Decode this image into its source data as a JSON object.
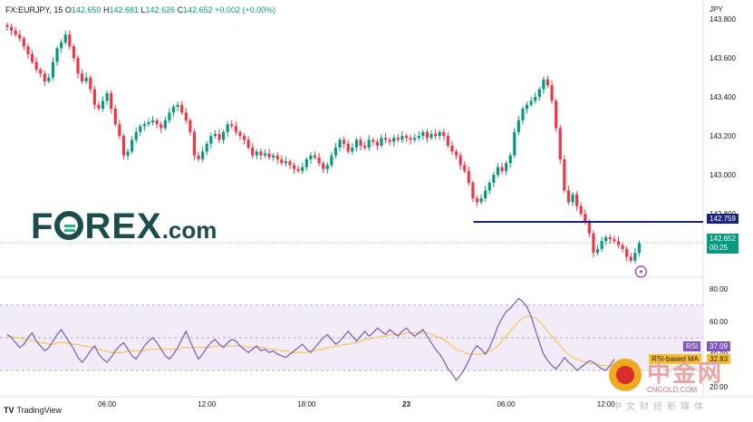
{
  "header": {
    "symbol_line": "FX:EURJPY, 15",
    "open_label": "O",
    "open": "142.650",
    "high_label": "H",
    "high": "142.681",
    "low_label": "L",
    "low": "142.626",
    "close_label": "C",
    "close": "142.652",
    "change": "+0.002 (+0.00%)"
  },
  "logo_text": {
    "part1": "F",
    "part2": "REX",
    "dotcom": ".com"
  },
  "tags": {
    "level": "142.759",
    "price": "142.652",
    "countdown": "00:25",
    "rsi_label": "RSI",
    "rsi_value": "37.09",
    "rsi_ma_label": "RSI-based MA",
    "rsi_ma_value": "32.83"
  },
  "brand": {
    "name": "TradingView"
  },
  "watermark": {
    "main": "中金网",
    "url": "CNGOLD.COM",
    "sub": "中文财经新媒体"
  },
  "colors": {
    "up": "#089981",
    "down": "#f23645",
    "level": "#1a237e",
    "rsi": "#7e57c2",
    "rsi_ma": "#fbc02d",
    "rsi_band": "#ede7f6"
  },
  "chart_data": {
    "type": "candlestick",
    "symbol": "FX:EURJPY",
    "interval": "15",
    "y_axis_unit": "JPY",
    "yticks": [
      143.8,
      143.6,
      143.4,
      143.2,
      143.0,
      142.8
    ],
    "ytick_labels": [
      "143.800",
      "143.600",
      "143.400",
      "143.200",
      "143.000",
      "142.800"
    ],
    "ylim": [
      142.48,
      143.87
    ],
    "horizontal_level": 142.759,
    "last_price": 142.652,
    "xtick_labels": [
      "06:00",
      "12:00",
      "18:00",
      "23",
      "06:00",
      "12:00"
    ],
    "xtick_candle_index": [
      24,
      48,
      72,
      96,
      120,
      144
    ],
    "closes": [
      143.76,
      143.74,
      143.72,
      143.7,
      143.66,
      143.62,
      143.58,
      143.54,
      143.52,
      143.48,
      143.5,
      143.58,
      143.65,
      143.68,
      143.72,
      143.66,
      143.6,
      143.52,
      143.48,
      143.5,
      143.44,
      143.36,
      143.34,
      143.38,
      143.42,
      143.34,
      143.26,
      143.2,
      143.1,
      143.12,
      143.18,
      143.22,
      143.25,
      143.26,
      143.27,
      143.28,
      143.26,
      143.24,
      143.28,
      143.32,
      143.35,
      143.36,
      143.32,
      143.28,
      143.22,
      143.1,
      143.08,
      143.12,
      143.16,
      143.2,
      143.21,
      143.18,
      143.22,
      143.26,
      143.25,
      143.22,
      143.2,
      143.18,
      143.14,
      143.1,
      143.12,
      143.1,
      143.11,
      143.09,
      143.1,
      143.08,
      143.06,
      143.07,
      143.05,
      143.03,
      143.02,
      143.04,
      143.08,
      143.1,
      143.09,
      143.06,
      143.03,
      143.05,
      143.1,
      143.14,
      143.18,
      143.16,
      143.12,
      143.14,
      143.18,
      143.15,
      143.14,
      143.18,
      143.17,
      143.15,
      143.19,
      143.18,
      143.17,
      143.19,
      143.18,
      143.2,
      143.19,
      143.18,
      143.19,
      143.2,
      143.22,
      143.19,
      143.21,
      143.2,
      143.22,
      143.2,
      143.15,
      143.12,
      143.1,
      143.05,
      143.02,
      142.96,
      142.88,
      142.86,
      142.88,
      142.92,
      142.96,
      143.0,
      143.04,
      143.02,
      143.06,
      143.1,
      143.22,
      143.28,
      143.34,
      143.36,
      143.38,
      143.4,
      143.44,
      143.49,
      143.46,
      143.38,
      143.24,
      143.08,
      142.92,
      142.86,
      142.9,
      142.84,
      142.8,
      142.76,
      142.7,
      142.6,
      142.62,
      142.66,
      142.68,
      142.67,
      142.66,
      142.64,
      142.62,
      142.58,
      142.56,
      142.6,
      142.65
    ],
    "rsi_axis_ticks": [
      80,
      60,
      40,
      20
    ],
    "rsi_axis_labels": [
      "80.00",
      "60.00",
      "40.00",
      "20.00"
    ],
    "rsi_band": [
      30,
      70
    ],
    "rsi_mid": 50,
    "rsi_ylim": [
      14,
      86
    ],
    "rsi": [
      52,
      50,
      47,
      44,
      46,
      50,
      53,
      48,
      45,
      42,
      44,
      48,
      52,
      55,
      51,
      47,
      43,
      38,
      35,
      38,
      42,
      45,
      40,
      37,
      35,
      38,
      42,
      45,
      47,
      43,
      39,
      37,
      41,
      45,
      48,
      50,
      47,
      43,
      39,
      37,
      40,
      44,
      49,
      54,
      48,
      42,
      37,
      40,
      44,
      47,
      49,
      46,
      44,
      47,
      49,
      48,
      45,
      43,
      41,
      43,
      45,
      42,
      43,
      41,
      42,
      40,
      39,
      38,
      40,
      42,
      44,
      46,
      43,
      41,
      44,
      47,
      50,
      52,
      49,
      46,
      48,
      51,
      54,
      51,
      48,
      51,
      54,
      51,
      53,
      56,
      54,
      52,
      55,
      53,
      51,
      54,
      56,
      53,
      51,
      53,
      55,
      51,
      47,
      43,
      40,
      36,
      31,
      28,
      24,
      27,
      31,
      36,
      42,
      45,
      43,
      40,
      44,
      50,
      57,
      62,
      66,
      68,
      71,
      74,
      72,
      69,
      63,
      55,
      47,
      40,
      36,
      33,
      31,
      34,
      38,
      35,
      33,
      30,
      32,
      34,
      36,
      35,
      33,
      31,
      30,
      33,
      37
    ],
    "rsi_ma": [
      51,
      51,
      50,
      50,
      49,
      49,
      48,
      48,
      47,
      47,
      46,
      46,
      47,
      47,
      47,
      47,
      46,
      46,
      45,
      45,
      44,
      44,
      43,
      42,
      42,
      41,
      41,
      41,
      41,
      42,
      42,
      42,
      42,
      42,
      43,
      43,
      43,
      43,
      43,
      43,
      43,
      43,
      44,
      44,
      44,
      44,
      44,
      44,
      44,
      44,
      45,
      45,
      45,
      45,
      45,
      45,
      45,
      45,
      44,
      44,
      44,
      44,
      44,
      43,
      43,
      43,
      42,
      42,
      41,
      41,
      41,
      41,
      41,
      42,
      42,
      43,
      43,
      44,
      44,
      45,
      45,
      46,
      46,
      47,
      47,
      48,
      49,
      49,
      50,
      50,
      51,
      51,
      52,
      52,
      52,
      52,
      53,
      53,
      53,
      53,
      53,
      53,
      52,
      51,
      50,
      49,
      47,
      45,
      43,
      42,
      41,
      40,
      40,
      40,
      40,
      41,
      42,
      43,
      45,
      48,
      51,
      54,
      57,
      60,
      62,
      63,
      63,
      62,
      60,
      57,
      54,
      51,
      48,
      45,
      42,
      40,
      38,
      37,
      36,
      35,
      34,
      34,
      34,
      33,
      33,
      33,
      33
    ]
  }
}
